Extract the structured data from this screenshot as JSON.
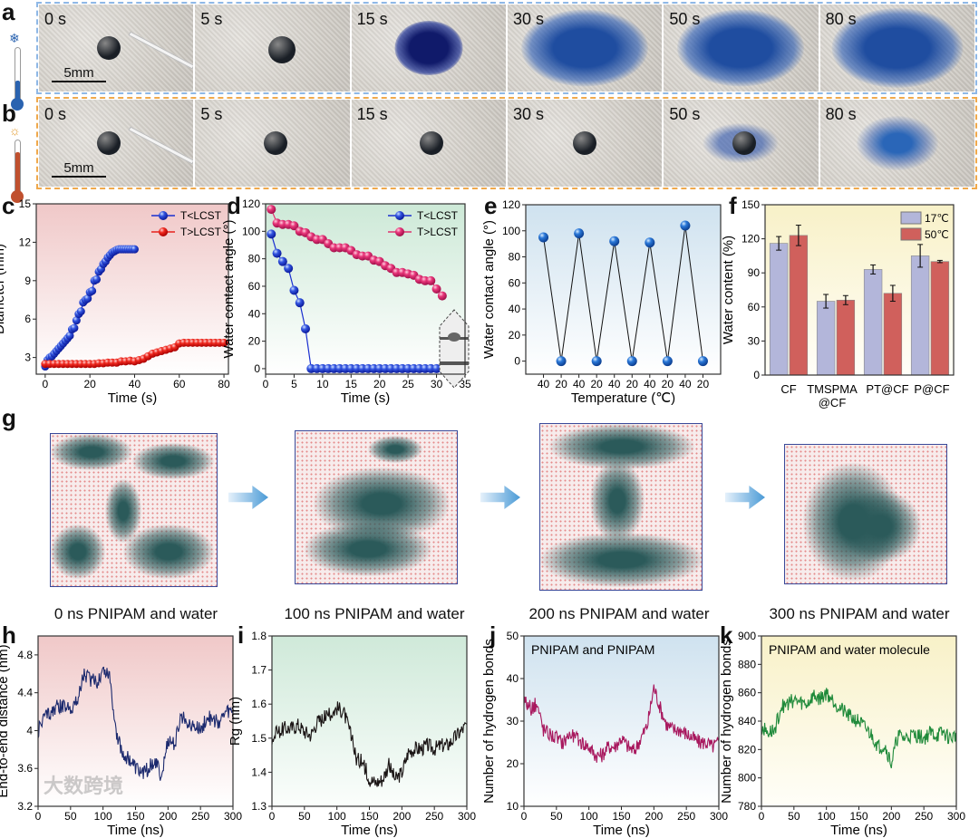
{
  "panels": {
    "a": "a",
    "b": "b",
    "c": "c",
    "d": "d",
    "e": "e",
    "f": "f",
    "g": "g",
    "h": "h",
    "i": "i",
    "j": "j",
    "k": "k"
  },
  "photos": {
    "row_a": [
      "0 s",
      "5 s",
      "15 s",
      "30 s",
      "50 s",
      "80 s"
    ],
    "row_b": [
      "0 s",
      "5 s",
      "15 s",
      "30 s",
      "50 s",
      "80 s"
    ],
    "scale_bar": "5mm",
    "row_a_icon": "snowflake-cold-thermometer-icon",
    "row_b_icon": "sun-hot-thermometer-icon"
  },
  "colors": {
    "cold": "#2a63b0",
    "hot": "#c0502e",
    "blue_series": "#1a2fd0",
    "red_series": "#e8231d",
    "pink_series": "#e0306e",
    "bar17": "#b3b6da",
    "bar50": "#d0605c"
  },
  "simulation": {
    "captions": [
      "0 ns PNIPAM and water",
      "100 ns PNIPAM and water",
      "200 ns PNIPAM and water",
      "300 ns PNIPAM and water"
    ]
  },
  "watermark": "大数跨境",
  "chart_data": [
    {
      "id": "c",
      "type": "scatter-line",
      "xlabel": "Time (s)",
      "ylabel": "Diameter (mm)",
      "xlim": [
        -4,
        82
      ],
      "ylim": [
        1.7,
        15
      ],
      "xticks": [
        0,
        20,
        40,
        60,
        80
      ],
      "yticks": [
        3,
        6,
        9,
        12,
        15
      ],
      "series": [
        {
          "name": "T<LCST",
          "color": "#1a2fd0",
          "x_start": 0,
          "x_step": 1,
          "values": [
            2.3,
            2.8,
            3.0,
            3.1,
            3.3,
            3.5,
            3.7,
            3.9,
            4.1,
            4.3,
            4.5,
            4.7,
            5.2,
            5.3,
            5.9,
            6.4,
            6.6,
            7.3,
            7.5,
            7.6,
            8.1,
            8.2,
            9.0,
            9.1,
            9.7,
            9.9,
            10.3,
            10.5,
            10.8,
            11.0,
            11.2,
            11.3,
            11.4,
            11.45,
            11.45,
            11.45,
            11.45,
            11.45,
            11.45,
            11.45,
            11.45
          ]
        },
        {
          "name": "T>LCST",
          "color": "#e8231d",
          "x_start": 0,
          "x_step": 2,
          "values": [
            2.5,
            2.5,
            2.5,
            2.5,
            2.5,
            2.5,
            2.5,
            2.5,
            2.5,
            2.5,
            2.5,
            2.5,
            2.55,
            2.55,
            2.6,
            2.6,
            2.6,
            2.7,
            2.7,
            2.75,
            2.7,
            2.8,
            2.9,
            3.1,
            3.3,
            3.4,
            3.5,
            3.6,
            3.7,
            3.8,
            4.1,
            4.15,
            4.15,
            4.15,
            4.15,
            4.15,
            4.15,
            4.15,
            4.15,
            4.15,
            4.15
          ]
        }
      ],
      "legend": "top-right"
    },
    {
      "id": "d",
      "type": "scatter-line",
      "xlabel": "Time (s)",
      "ylabel": "Water contact angle (°)",
      "xlim": [
        0,
        35
      ],
      "ylim": [
        -4,
        120
      ],
      "xticks": [
        0,
        5,
        10,
        15,
        20,
        25,
        30,
        35
      ],
      "yticks": [
        0,
        20,
        40,
        60,
        80,
        100,
        120
      ],
      "series": [
        {
          "name": "T<LCST",
          "color": "#1a2fd0",
          "x_start": 1,
          "x_step": 1,
          "values": [
            98,
            84,
            78,
            73,
            57,
            48,
            29,
            0,
            0,
            0,
            0,
            0,
            0,
            0,
            0,
            0,
            0,
            0,
            0,
            0,
            0,
            0,
            0,
            0,
            0,
            0,
            0,
            0,
            0,
            0,
            0
          ]
        },
        {
          "name": "T>LCST",
          "color": "#e0306e",
          "x_start": 1,
          "x_step": 1,
          "values": [
            116,
            106,
            105,
            105,
            104,
            100,
            99,
            96,
            94,
            94,
            91,
            88,
            88,
            88,
            86,
            83,
            82,
            82,
            79,
            78,
            75,
            73,
            70,
            70,
            69,
            68,
            65,
            64,
            64,
            58,
            53
          ]
        }
      ],
      "legend": "top-right",
      "inset": "droplet-contact-images"
    },
    {
      "id": "e",
      "type": "line",
      "xlabel": "Temperature (℃)",
      "ylabel": "Water contact angle (°)",
      "xlim": [
        -1,
        10
      ],
      "ylim": [
        -10,
        120
      ],
      "categories": [
        "40",
        "20",
        "40",
        "20",
        "40",
        "20",
        "40",
        "20",
        "40",
        "20"
      ],
      "yticks": [
        0,
        20,
        40,
        60,
        80,
        100,
        120
      ],
      "values": [
        95,
        0,
        98,
        0,
        92,
        0,
        91,
        0,
        104,
        0
      ]
    },
    {
      "id": "f",
      "type": "bar",
      "xlabel": "",
      "ylabel": "Water content (%)",
      "ylim": [
        0,
        150
      ],
      "yticks": [
        0,
        30,
        60,
        90,
        120,
        150
      ],
      "categories": [
        "CF",
        "TMSPMA @CF",
        "PT@CF",
        "P@CF"
      ],
      "series": [
        {
          "name": "17℃",
          "color": "#b3b6da",
          "values": [
            116,
            65,
            93,
            105
          ],
          "errors": [
            6,
            6,
            4,
            10
          ]
        },
        {
          "name": "50℃",
          "color": "#d0605c",
          "values": [
            123,
            66,
            72,
            100
          ],
          "errors": [
            9,
            4,
            7,
            1
          ]
        }
      ],
      "legend": "top-right"
    },
    {
      "id": "h",
      "type": "line",
      "xlabel": "Time (ns)",
      "ylabel": "End-to-end distance (nm)",
      "xlim": [
        0,
        300
      ],
      "ylim": [
        3.2,
        5.0
      ],
      "xticks": [
        0,
        50,
        100,
        150,
        200,
        250,
        300
      ],
      "yticks": [
        3.2,
        3.6,
        4.0,
        4.4,
        4.8
      ],
      "color": "#1c2a6e",
      "x_step": 10,
      "values": [
        4.0,
        4.15,
        4.2,
        4.25,
        4.25,
        4.25,
        4.3,
        4.6,
        4.55,
        4.5,
        4.65,
        4.6,
        4.0,
        3.75,
        3.7,
        3.6,
        3.55,
        3.6,
        3.7,
        3.5,
        3.9,
        3.85,
        4.15,
        4.1,
        4.05,
        4.0,
        4.15,
        4.1,
        4.1,
        4.2,
        4.2
      ]
    },
    {
      "id": "i",
      "type": "line",
      "xlabel": "Time (ns)",
      "ylabel": "Rg (nm)",
      "xlim": [
        0,
        300
      ],
      "ylim": [
        1.3,
        1.8
      ],
      "xticks": [
        0,
        50,
        100,
        150,
        200,
        250,
        300
      ],
      "yticks": [
        1.3,
        1.4,
        1.5,
        1.6,
        1.7,
        1.8
      ],
      "color": "#1a1414",
      "x_step": 10,
      "values": [
        1.5,
        1.52,
        1.53,
        1.53,
        1.54,
        1.52,
        1.51,
        1.55,
        1.56,
        1.57,
        1.59,
        1.58,
        1.52,
        1.44,
        1.43,
        1.38,
        1.37,
        1.38,
        1.42,
        1.38,
        1.4,
        1.46,
        1.47,
        1.47,
        1.48,
        1.47,
        1.48,
        1.48,
        1.5,
        1.52,
        1.54
      ]
    },
    {
      "id": "j",
      "type": "line",
      "title": "PNIPAM and PNIPAM",
      "xlabel": "Time (ns)",
      "ylabel": "Number of hydrogen bonds",
      "xlim": [
        0,
        300
      ],
      "ylim": [
        10,
        50
      ],
      "xticks": [
        0,
        50,
        100,
        150,
        200,
        250,
        300
      ],
      "yticks": [
        10,
        20,
        30,
        40,
        50
      ],
      "color": "#a8185e",
      "x_step": 10,
      "values": [
        35,
        33,
        34,
        28,
        27,
        26,
        25,
        27,
        26,
        25,
        24,
        22,
        22,
        24,
        24,
        26,
        24,
        23,
        26,
        29,
        38,
        33,
        29,
        28,
        28,
        27,
        26,
        25,
        25,
        24,
        25
      ]
    },
    {
      "id": "k",
      "type": "line",
      "title": "PNIPAM and water molecule",
      "xlabel": "Time (ns)",
      "ylabel": "Number of hydrogen bonds",
      "xlim": [
        0,
        300
      ],
      "ylim": [
        780,
        900
      ],
      "xticks": [
        0,
        50,
        100,
        150,
        200,
        250,
        300
      ],
      "yticks": [
        780,
        800,
        820,
        840,
        860,
        880,
        900
      ],
      "color": "#1f8a3a",
      "x_step": 10,
      "values": [
        835,
        832,
        833,
        850,
        852,
        855,
        853,
        852,
        858,
        856,
        860,
        855,
        850,
        845,
        842,
        840,
        835,
        830,
        822,
        823,
        810,
        830,
        828,
        830,
        830,
        828,
        832,
        830,
        832,
        828,
        830
      ]
    }
  ]
}
